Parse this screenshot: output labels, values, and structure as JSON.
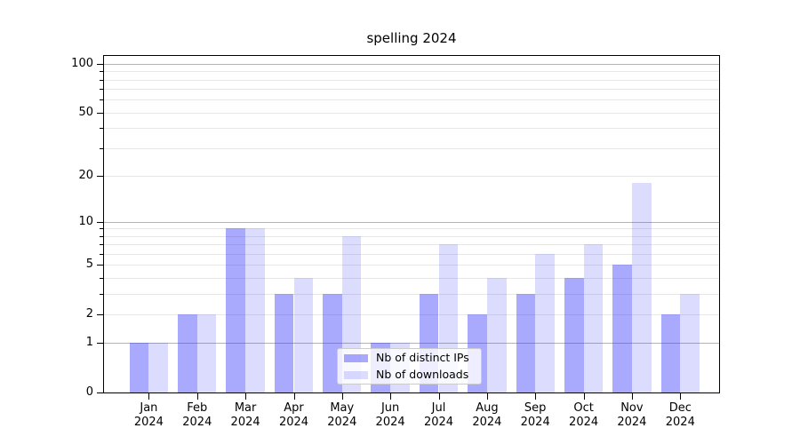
{
  "window": {
    "background": "#ffffff"
  },
  "chart_data": {
    "type": "bar",
    "title": "spelling 2024",
    "months": [
      "Jan",
      "Feb",
      "Mar",
      "Apr",
      "May",
      "Jun",
      "Jul",
      "Aug",
      "Sep",
      "Oct",
      "Nov",
      "Dec"
    ],
    "year": "2024",
    "series": [
      {
        "name": "Nb of distinct IPs",
        "color": "rgba(60,60,250,0.44)",
        "color_on_white": "#a9a9f8",
        "values": [
          1,
          2,
          9,
          3,
          3,
          1,
          3,
          2,
          3,
          4,
          5,
          2
        ]
      },
      {
        "name": "Nb of downloads",
        "color": "rgba(60,60,250,0.18)",
        "color_on_white": "#dbdbfa",
        "values": [
          1,
          2,
          9,
          4,
          8,
          1,
          7,
          4,
          6,
          7,
          18,
          3
        ]
      }
    ],
    "y_axis": {
      "scale": "log1p",
      "max": 112,
      "ticks": [
        {
          "value": 100,
          "label": "100"
        },
        {
          "value": 50,
          "label": "50"
        },
        {
          "value": 20,
          "label": "20"
        },
        {
          "value": 10,
          "label": "10"
        },
        {
          "value": 5,
          "label": "5"
        },
        {
          "value": 2,
          "label": "2"
        },
        {
          "value": 1,
          "label": "1"
        },
        {
          "value": 0,
          "label": "0"
        }
      ],
      "minor_unlabeled_ticks": [
        3,
        4,
        6,
        7,
        8,
        9,
        30,
        40,
        60,
        70,
        80,
        90
      ],
      "grid_major": [
        1,
        10,
        100
      ],
      "grid_minor": [
        2,
        3,
        4,
        5,
        6,
        7,
        8,
        9,
        20,
        30,
        40,
        50,
        60,
        70,
        80,
        90
      ],
      "grid_major_color": "#b3b3b3",
      "grid_minor_color": "#e7e7e7"
    },
    "legend": {
      "position": "lower-center"
    }
  }
}
